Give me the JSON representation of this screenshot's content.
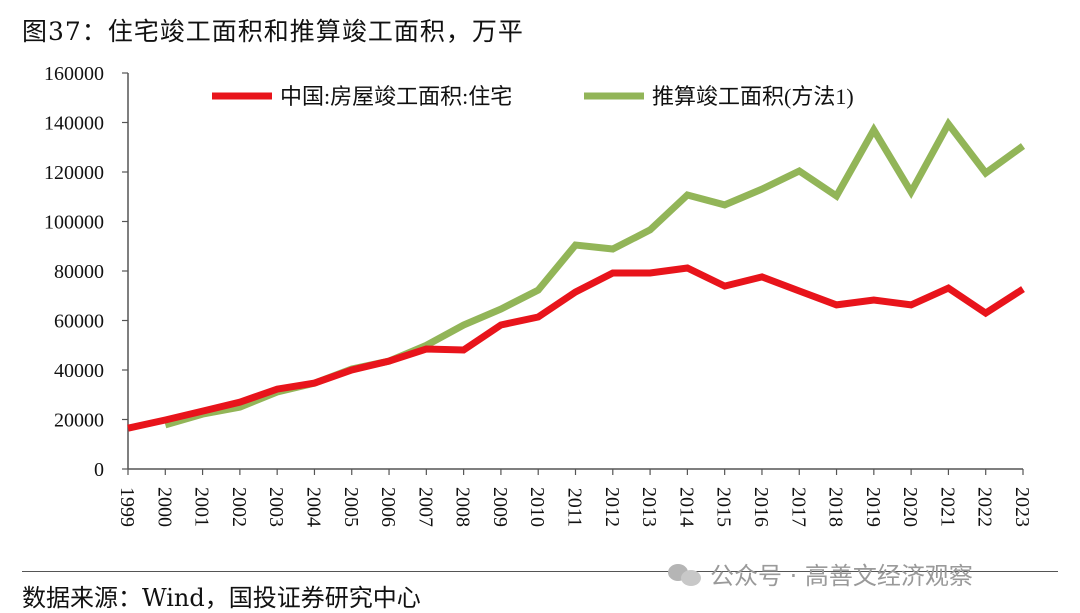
{
  "title": "图37：住宅竣工面积和推算竣工面积，万平",
  "source": "数据来源：Wind，国投证券研究中心",
  "watermark": "公众号 · 高善文经济观察",
  "chart_data": {
    "type": "line",
    "title": "图37：住宅竣工面积和推算竣工面积，万平",
    "xlabel": "",
    "ylabel": "",
    "ylim": [
      0,
      160000
    ],
    "yticks": [
      0,
      20000,
      40000,
      60000,
      80000,
      100000,
      120000,
      140000,
      160000
    ],
    "grid": false,
    "legend_position": "top",
    "x": [
      "1999",
      "2000",
      "2001",
      "2002",
      "2003",
      "2004",
      "2005",
      "2006",
      "2007",
      "2008",
      "2009",
      "2010",
      "2011",
      "2012",
      "2013",
      "2014",
      "2015",
      "2016",
      "2017",
      "2018",
      "2019",
      "2020",
      "2021",
      "2022",
      "2023"
    ],
    "series": [
      {
        "name": "中国:房屋竣工面积:住宅",
        "color": "#e8141b",
        "values": [
          16500,
          19800,
          23400,
          27000,
          32300,
          34700,
          40000,
          43600,
          48500,
          48100,
          58200,
          61400,
          71500,
          79200,
          79200,
          81200,
          73900,
          77600,
          71900,
          66300,
          68300,
          66300,
          73100,
          63000,
          72700
        ]
      },
      {
        "name": "推算竣工面积(方法1)",
        "color": "#92b558",
        "values": [
          null,
          17800,
          22200,
          25000,
          31100,
          34700,
          40400,
          43600,
          50000,
          58200,
          64600,
          72300,
          90500,
          88900,
          96600,
          110700,
          106700,
          113100,
          120400,
          110300,
          137000,
          111900,
          139400,
          119600,
          130500
        ]
      }
    ]
  }
}
